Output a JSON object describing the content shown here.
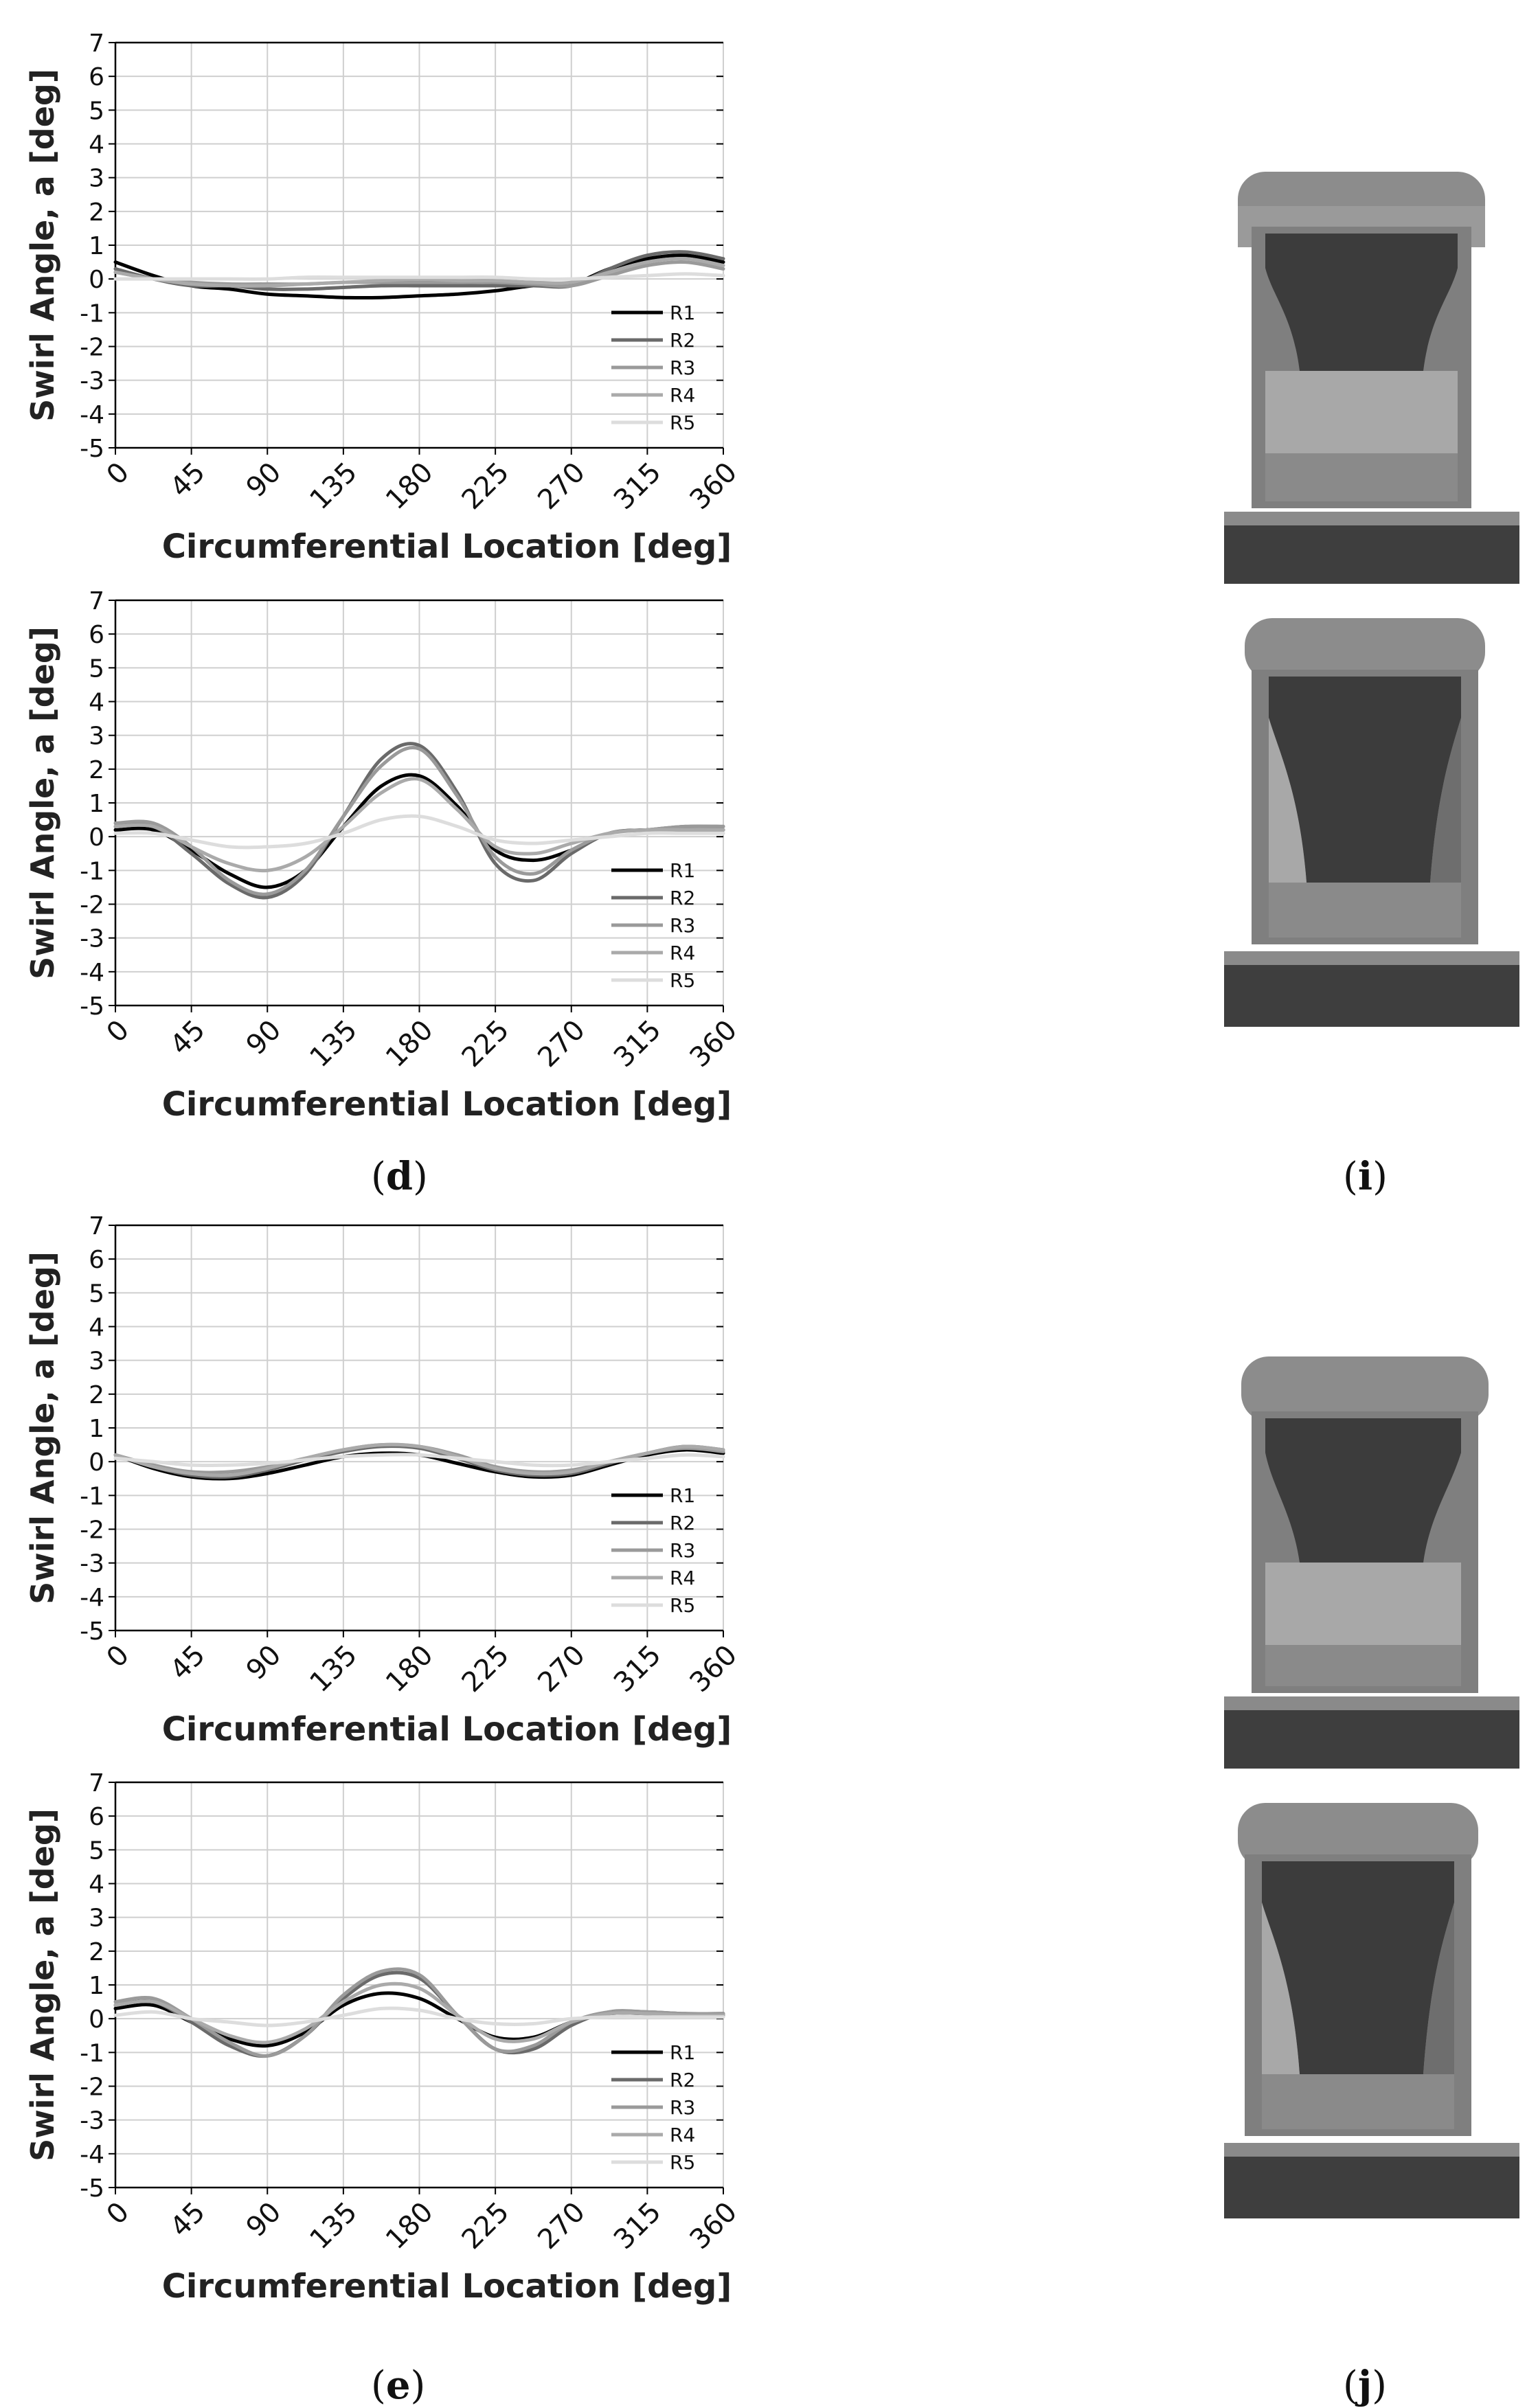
{
  "panels": [
    {
      "caption_open": "(",
      "caption_letter": "d",
      "caption_close": ")"
    },
    {
      "caption_open": "(",
      "caption_letter": "e",
      "caption_close": ")"
    }
  ],
  "renders": [
    {
      "caption_open": "(",
      "caption_letter": "i",
      "caption_close": ")"
    },
    {
      "caption_open": "(",
      "caption_letter": "j",
      "caption_close": ")"
    }
  ],
  "line_colors": [
    "#000000",
    "#6a6a6a",
    "#9a9a9a",
    "#aaaaaa",
    "#dddddd"
  ],
  "render_colors": {
    "light": "#8a8a8a",
    "lighter": "#a8a8a8",
    "dark": "#3c3c3c",
    "base": "#4a4a4a"
  },
  "chart_data": [
    {
      "type": "line",
      "xlabel": "Circumferential Location [deg]",
      "ylabel": "Swirl Angle, a [deg]",
      "xlim": [
        0,
        360
      ],
      "ylim": [
        -5,
        7
      ],
      "xticks": [
        0,
        45,
        90,
        135,
        180,
        225,
        270,
        315,
        360
      ],
      "yticks": [
        -5,
        -4,
        -3,
        -2,
        -1,
        0,
        1,
        2,
        3,
        4,
        5,
        6,
        7
      ],
      "grid": true,
      "legend": "bottom-right",
      "x": [
        0,
        22.5,
        45,
        67.5,
        90,
        112.5,
        135,
        157.5,
        180,
        202.5,
        225,
        247.5,
        270,
        292.5,
        315,
        337.5,
        360
      ],
      "series": [
        {
          "name": "R1",
          "values": [
            0.5,
            0.1,
            -0.2,
            -0.3,
            -0.45,
            -0.5,
            -0.55,
            -0.55,
            -0.5,
            -0.45,
            -0.35,
            -0.2,
            -0.15,
            0.3,
            0.6,
            0.7,
            0.5
          ]
        },
        {
          "name": "R2",
          "values": [
            0.3,
            0.0,
            -0.2,
            -0.2,
            -0.3,
            -0.3,
            -0.25,
            -0.2,
            -0.2,
            -0.2,
            -0.2,
            -0.2,
            -0.2,
            0.3,
            0.7,
            0.8,
            0.6
          ]
        },
        {
          "name": "R3",
          "values": [
            0.2,
            0.0,
            -0.1,
            -0.15,
            -0.15,
            -0.15,
            -0.1,
            -0.1,
            -0.1,
            -0.1,
            -0.1,
            -0.15,
            -0.2,
            0.1,
            0.4,
            0.5,
            0.3
          ]
        },
        {
          "name": "R4",
          "values": [
            0.2,
            0.0,
            -0.15,
            -0.2,
            -0.2,
            -0.15,
            -0.1,
            -0.05,
            0.0,
            -0.05,
            -0.05,
            -0.1,
            -0.1,
            0.2,
            0.5,
            0.6,
            0.4
          ]
        },
        {
          "name": "R5",
          "values": [
            0.0,
            0.0,
            0.0,
            0.0,
            0.0,
            0.05,
            0.05,
            0.05,
            0.05,
            0.05,
            0.05,
            0.0,
            0.0,
            0.05,
            0.1,
            0.15,
            0.1
          ]
        }
      ]
    },
    {
      "type": "line",
      "xlabel": "Circumferential Location [deg]",
      "ylabel": "Swirl Angle, a [deg]",
      "xlim": [
        0,
        360
      ],
      "ylim": [
        -5,
        7
      ],
      "xticks": [
        0,
        45,
        90,
        135,
        180,
        225,
        270,
        315,
        360
      ],
      "yticks": [
        -5,
        -4,
        -3,
        -2,
        -1,
        0,
        1,
        2,
        3,
        4,
        5,
        6,
        7
      ],
      "grid": true,
      "legend": "bottom-right",
      "x": [
        0,
        22.5,
        45,
        67.5,
        90,
        112.5,
        135,
        157.5,
        180,
        202.5,
        225,
        247.5,
        270,
        292.5,
        315,
        337.5,
        360
      ],
      "series": [
        {
          "name": "R1",
          "values": [
            0.2,
            0.2,
            -0.4,
            -1.1,
            -1.5,
            -1.0,
            0.3,
            1.5,
            1.8,
            0.9,
            -0.4,
            -0.7,
            -0.4,
            0.1,
            0.2,
            0.2,
            0.2
          ]
        },
        {
          "name": "R2",
          "values": [
            0.3,
            0.3,
            -0.5,
            -1.4,
            -1.8,
            -1.1,
            0.6,
            2.3,
            2.7,
            1.3,
            -0.8,
            -1.3,
            -0.5,
            0.1,
            0.2,
            0.3,
            0.3
          ]
        },
        {
          "name": "R3",
          "values": [
            0.4,
            0.4,
            -0.3,
            -1.3,
            -1.7,
            -1.0,
            0.6,
            2.1,
            2.6,
            1.2,
            -0.6,
            -1.1,
            -0.4,
            0.1,
            0.2,
            0.3,
            0.3
          ]
        },
        {
          "name": "R4",
          "values": [
            0.3,
            0.3,
            -0.3,
            -0.8,
            -1.0,
            -0.6,
            0.3,
            1.3,
            1.7,
            0.8,
            -0.3,
            -0.5,
            -0.2,
            0.1,
            0.2,
            0.2,
            0.2
          ]
        },
        {
          "name": "R5",
          "values": [
            0.1,
            0.1,
            -0.1,
            -0.3,
            -0.3,
            -0.2,
            0.1,
            0.5,
            0.6,
            0.3,
            -0.1,
            -0.2,
            -0.1,
            0.0,
            0.1,
            0.1,
            0.1
          ]
        }
      ]
    },
    {
      "type": "line",
      "xlabel": "Circumferential Location [deg]",
      "ylabel": "Swirl Angle, a [deg]",
      "xlim": [
        0,
        360
      ],
      "ylim": [
        -5,
        7
      ],
      "xticks": [
        0,
        45,
        90,
        135,
        180,
        225,
        270,
        315,
        360
      ],
      "yticks": [
        -5,
        -4,
        -3,
        -2,
        -1,
        0,
        1,
        2,
        3,
        4,
        5,
        6,
        7
      ],
      "grid": true,
      "legend": "bottom-right",
      "x": [
        0,
        22.5,
        45,
        67.5,
        90,
        112.5,
        135,
        157.5,
        180,
        202.5,
        225,
        247.5,
        270,
        292.5,
        315,
        337.5,
        360
      ],
      "series": [
        {
          "name": "R1",
          "values": [
            0.2,
            -0.2,
            -0.45,
            -0.5,
            -0.35,
            -0.1,
            0.15,
            0.25,
            0.2,
            -0.05,
            -0.3,
            -0.45,
            -0.4,
            -0.1,
            0.2,
            0.35,
            0.25
          ]
        },
        {
          "name": "R2",
          "values": [
            0.2,
            -0.15,
            -0.4,
            -0.45,
            -0.25,
            0.05,
            0.3,
            0.45,
            0.4,
            0.1,
            -0.25,
            -0.4,
            -0.35,
            -0.05,
            0.25,
            0.45,
            0.35
          ]
        },
        {
          "name": "R3",
          "values": [
            0.2,
            -0.1,
            -0.3,
            -0.3,
            -0.15,
            0.1,
            0.35,
            0.5,
            0.45,
            0.2,
            -0.15,
            -0.3,
            -0.25,
            0.0,
            0.25,
            0.4,
            0.3
          ]
        },
        {
          "name": "R4",
          "values": [
            0.2,
            -0.15,
            -0.35,
            -0.4,
            -0.2,
            0.1,
            0.35,
            0.5,
            0.45,
            0.15,
            -0.2,
            -0.35,
            -0.3,
            0.0,
            0.25,
            0.45,
            0.35
          ]
        },
        {
          "name": "R5",
          "values": [
            0.1,
            0.0,
            -0.1,
            -0.1,
            -0.05,
            0.05,
            0.15,
            0.2,
            0.2,
            0.1,
            0.0,
            -0.1,
            -0.1,
            0.0,
            0.1,
            0.2,
            0.15
          ]
        }
      ]
    },
    {
      "type": "line",
      "xlabel": "Circumferential Location [deg]",
      "ylabel": "Swirl Angle, a [deg]",
      "xlim": [
        0,
        360
      ],
      "ylim": [
        -5,
        7
      ],
      "xticks": [
        0,
        45,
        90,
        135,
        180,
        225,
        270,
        315,
        360
      ],
      "yticks": [
        -5,
        -4,
        -3,
        -2,
        -1,
        0,
        1,
        2,
        3,
        4,
        5,
        6,
        7
      ],
      "grid": true,
      "legend": "bottom-right",
      "x": [
        0,
        22.5,
        45,
        67.5,
        90,
        112.5,
        135,
        157.5,
        180,
        202.5,
        225,
        247.5,
        270,
        292.5,
        315,
        337.5,
        360
      ],
      "series": [
        {
          "name": "R1",
          "values": [
            0.3,
            0.4,
            -0.1,
            -0.6,
            -0.8,
            -0.4,
            0.4,
            0.75,
            0.6,
            0.0,
            -0.55,
            -0.55,
            -0.1,
            0.15,
            0.15,
            0.1,
            0.1
          ]
        },
        {
          "name": "R2",
          "values": [
            0.4,
            0.5,
            -0.1,
            -0.8,
            -1.1,
            -0.5,
            0.6,
            1.3,
            1.2,
            0.1,
            -0.9,
            -0.9,
            -0.2,
            0.2,
            0.2,
            0.15,
            0.15
          ]
        },
        {
          "name": "R3",
          "values": [
            0.5,
            0.6,
            0.0,
            -0.7,
            -1.1,
            -0.5,
            0.7,
            1.4,
            1.3,
            0.1,
            -0.9,
            -0.8,
            -0.1,
            0.2,
            0.2,
            0.15,
            0.15
          ]
        },
        {
          "name": "R4",
          "values": [
            0.4,
            0.5,
            0.0,
            -0.5,
            -0.7,
            -0.3,
            0.5,
            1.0,
            0.9,
            0.1,
            -0.6,
            -0.6,
            -0.1,
            0.15,
            0.15,
            0.1,
            0.1
          ]
        },
        {
          "name": "R5",
          "values": [
            0.1,
            0.2,
            0.0,
            -0.1,
            -0.2,
            -0.1,
            0.1,
            0.3,
            0.25,
            0.0,
            -0.15,
            -0.15,
            0.0,
            0.05,
            0.05,
            0.05,
            0.05
          ]
        }
      ]
    }
  ]
}
